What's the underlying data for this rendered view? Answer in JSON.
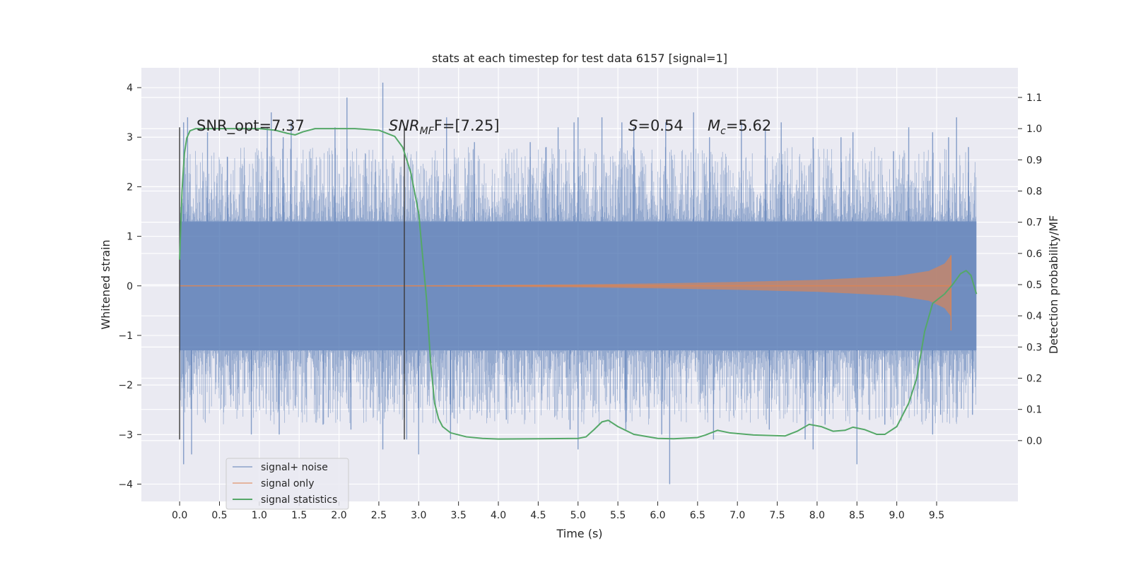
{
  "chart_data": {
    "type": "line",
    "title": "stats at each timestep for test data 6157 [signal=1]",
    "xlabel": "Time (s)",
    "ylabel": "Whitened strain",
    "ylabel_right": "Detection probability/MF",
    "xlim": [
      -0.48,
      10.52
    ],
    "ylim": [
      -4.35,
      4.4
    ],
    "ylim_right": [
      -0.195,
      1.195
    ],
    "x_ticks": [
      "0.0",
      "0.5",
      "1.0",
      "1.5",
      "2.0",
      "2.5",
      "3.0",
      "3.5",
      "4.0",
      "4.5",
      "5.0",
      "5.5",
      "6.0",
      "6.5",
      "7.0",
      "7.5",
      "8.0",
      "8.5",
      "9.0",
      "9.5"
    ],
    "y_ticks": [
      "4",
      "3",
      "2",
      "1",
      "0",
      "−1",
      "−2",
      "−3",
      "−4"
    ],
    "y_right_ticks": [
      "1.1",
      "1.0",
      "0.9",
      "0.8",
      "0.7",
      "0.6",
      "0.5",
      "0.4",
      "0.3",
      "0.2",
      "0.1",
      "0.0"
    ],
    "grid": true,
    "legend_position": "lower-left",
    "colors": {
      "background": "#eaeaf2",
      "noise": "#4c72b0",
      "signal": "#dd8452",
      "stats": "#55a868",
      "vline": "#3a3a3a"
    },
    "annotations": {
      "snr_opt": "SNR_opt=7.37",
      "snr_mf_sym": "SNR",
      "snr_mf_sub": "MF",
      "snr_mf_val": "F=[7.25]",
      "s_sym": "S",
      "s_val": "=0.54",
      "mc_sym": "M",
      "mc_sub": "c",
      "mc_val": "=5.62"
    },
    "vlines": [
      {
        "x": 0.0,
        "ymin": -3.1,
        "ymax": 3.2
      },
      {
        "x": 2.82,
        "ymin": -3.1,
        "ymax": 3.2
      }
    ],
    "series": [
      {
        "name": "signal+ noise",
        "x_range": [
          0.0,
          10.0
        ],
        "band": 1.3,
        "peaks": [
          [
            0.05,
            3.3
          ],
          [
            0.1,
            3.4
          ],
          [
            0.35,
            3.1
          ],
          [
            0.6,
            2.6
          ],
          [
            1.1,
            3.2
          ],
          [
            1.15,
            3.5
          ],
          [
            1.3,
            3.0
          ],
          [
            1.4,
            3.3
          ],
          [
            1.95,
            3.2
          ],
          [
            2.1,
            3.8
          ],
          [
            2.55,
            4.1
          ],
          [
            3.35,
            3.4
          ],
          [
            3.7,
            2.9
          ],
          [
            4.4,
            2.9
          ],
          [
            4.6,
            2.8
          ],
          [
            4.75,
            3.2
          ],
          [
            4.95,
            3.3
          ],
          [
            5.0,
            3.4
          ],
          [
            5.3,
            3.4
          ],
          [
            5.55,
            3.3
          ],
          [
            5.7,
            3.2
          ],
          [
            6.1,
            3.3
          ],
          [
            6.45,
            3.5
          ],
          [
            6.65,
            3.0
          ],
          [
            7.05,
            3.3
          ],
          [
            7.35,
            3.2
          ],
          [
            7.55,
            3.3
          ],
          [
            7.95,
            3.0
          ],
          [
            8.3,
            3.0
          ],
          [
            8.45,
            3.1
          ],
          [
            9.15,
            3.2
          ],
          [
            9.45,
            3.1
          ],
          [
            9.65,
            3.0
          ],
          [
            9.75,
            3.4
          ],
          [
            9.9,
            2.8
          ]
        ],
        "troughs": [
          [
            0.05,
            -3.6
          ],
          [
            0.15,
            -3.4
          ],
          [
            0.9,
            -3.0
          ],
          [
            1.25,
            -3.0
          ],
          [
            1.8,
            -2.8
          ],
          [
            2.15,
            -2.9
          ],
          [
            2.55,
            -3.3
          ],
          [
            2.85,
            -3.1
          ],
          [
            3.0,
            -3.4
          ],
          [
            3.4,
            -3.1
          ],
          [
            4.1,
            -2.7
          ],
          [
            4.9,
            -2.9
          ],
          [
            5.0,
            -3.3
          ],
          [
            5.6,
            -2.9
          ],
          [
            6.05,
            -3.0
          ],
          [
            6.15,
            -4.0
          ],
          [
            6.7,
            -3.1
          ],
          [
            7.4,
            -2.9
          ],
          [
            7.85,
            -3.1
          ],
          [
            7.95,
            -3.3
          ],
          [
            8.1,
            -2.8
          ],
          [
            8.5,
            -3.6
          ],
          [
            8.85,
            -2.8
          ],
          [
            9.45,
            -3.0
          ],
          [
            9.55,
            -2.6
          ],
          [
            9.95,
            -2.6
          ]
        ]
      },
      {
        "name": "signal only",
        "amplitude_points": [
          [
            0.0,
            0.005
          ],
          [
            3.0,
            0.01
          ],
          [
            5.0,
            0.03
          ],
          [
            6.0,
            0.05
          ],
          [
            7.0,
            0.08
          ],
          [
            8.0,
            0.12
          ],
          [
            9.0,
            0.2
          ],
          [
            9.4,
            0.3
          ],
          [
            9.6,
            0.45
          ],
          [
            9.68,
            0.62
          ]
        ],
        "x_end": 9.68
      },
      {
        "name": "signal statistics",
        "axis": "right",
        "x": [
          0.0,
          0.03,
          0.06,
          0.09,
          0.13,
          0.2,
          0.4,
          0.7,
          1.0,
          1.2,
          1.35,
          1.45,
          1.55,
          1.7,
          1.9,
          2.2,
          2.5,
          2.7,
          2.8,
          2.9,
          3.0,
          3.1,
          3.15,
          3.2,
          3.25,
          3.3,
          3.4,
          3.6,
          3.8,
          4.0,
          4.5,
          5.0,
          5.1,
          5.2,
          5.3,
          5.38,
          5.5,
          5.7,
          6.0,
          6.2,
          6.5,
          6.6,
          6.75,
          6.9,
          7.2,
          7.6,
          7.75,
          7.9,
          8.05,
          8.2,
          8.35,
          8.45,
          8.6,
          8.75,
          8.85,
          9.0,
          9.15,
          9.25,
          9.35,
          9.45,
          9.6,
          9.7,
          9.8,
          9.87,
          9.93,
          10.0
        ],
        "y": [
          0.58,
          0.8,
          0.92,
          0.97,
          0.993,
          1.0,
          1.0,
          1.0,
          1.0,
          0.995,
          0.985,
          0.98,
          0.99,
          1.0,
          1.0,
          1.0,
          0.995,
          0.975,
          0.94,
          0.86,
          0.73,
          0.45,
          0.25,
          0.12,
          0.07,
          0.045,
          0.025,
          0.012,
          0.007,
          0.005,
          0.006,
          0.007,
          0.012,
          0.035,
          0.06,
          0.065,
          0.045,
          0.02,
          0.007,
          0.006,
          0.01,
          0.018,
          0.033,
          0.025,
          0.018,
          0.015,
          0.03,
          0.052,
          0.045,
          0.03,
          0.033,
          0.043,
          0.035,
          0.02,
          0.02,
          0.045,
          0.12,
          0.2,
          0.35,
          0.44,
          0.47,
          0.5,
          0.535,
          0.545,
          0.53,
          0.47
        ]
      }
    ]
  }
}
